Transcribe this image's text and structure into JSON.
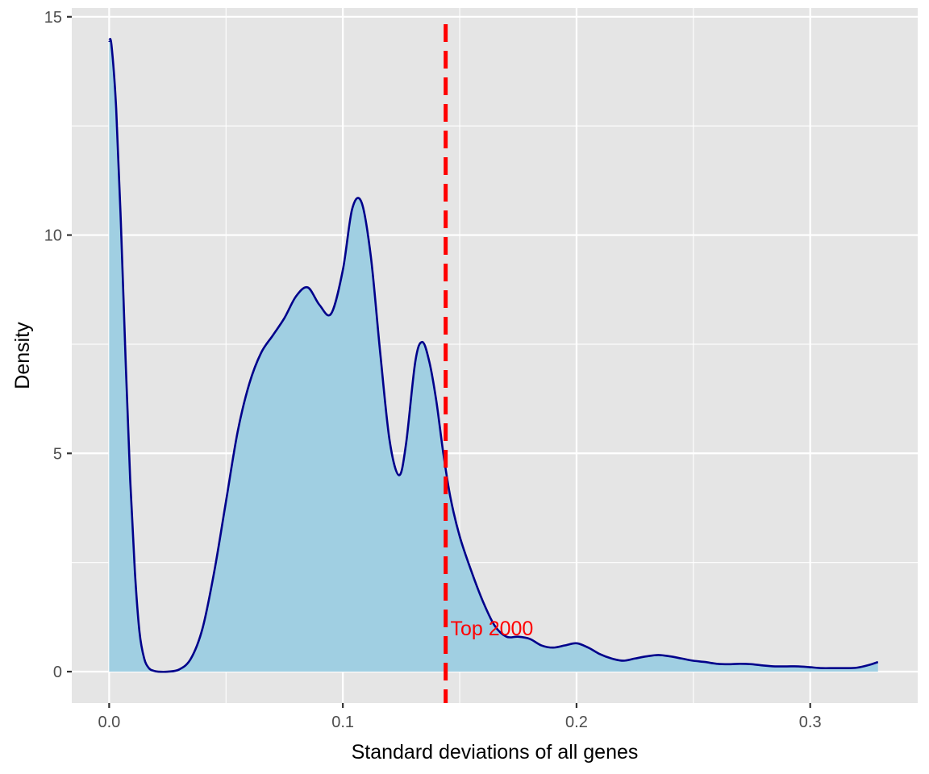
{
  "chart_data": {
    "type": "area",
    "title": "",
    "xlabel": "Standard deviations of all genes",
    "ylabel": "Density",
    "xlim": [
      -0.016,
      0.346
    ],
    "ylim": [
      -0.72,
      15.2
    ],
    "x_ticks": [
      0.0,
      0.1,
      0.2,
      0.3
    ],
    "x_tick_labels": [
      "0.0",
      "0.1",
      "0.2",
      "0.3"
    ],
    "y_ticks": [
      0,
      5,
      10,
      15
    ],
    "y_tick_labels": [
      "0",
      "5",
      "10",
      "15"
    ],
    "grid": true,
    "legend": "none",
    "fill_color": "#a0cfe2",
    "line_color": "#00008b",
    "panel_color": "#e5e5e5",
    "series": [
      {
        "x": [
          0.0,
          0.001,
          0.003,
          0.005,
          0.007,
          0.009,
          0.011,
          0.013,
          0.015,
          0.017,
          0.019,
          0.021,
          0.025,
          0.03,
          0.035,
          0.04,
          0.045,
          0.05,
          0.055,
          0.06,
          0.065,
          0.07,
          0.075,
          0.08,
          0.085,
          0.09,
          0.095,
          0.1,
          0.104,
          0.108,
          0.112,
          0.116,
          0.12,
          0.124,
          0.127,
          0.131,
          0.134,
          0.137,
          0.14,
          0.143,
          0.146,
          0.15,
          0.155,
          0.16,
          0.165,
          0.17,
          0.175,
          0.18,
          0.185,
          0.19,
          0.195,
          0.2,
          0.205,
          0.21,
          0.215,
          0.22,
          0.225,
          0.23,
          0.235,
          0.24,
          0.245,
          0.25,
          0.255,
          0.26,
          0.265,
          0.27,
          0.275,
          0.28,
          0.285,
          0.29,
          0.295,
          0.3,
          0.305,
          0.31,
          0.315,
          0.32,
          0.325,
          0.329
        ],
        "y": [
          14.45,
          14.35,
          12.9,
          10.3,
          7.2,
          4.4,
          2.3,
          0.9,
          0.3,
          0.08,
          0.02,
          0.0,
          0.0,
          0.05,
          0.3,
          1.0,
          2.3,
          3.9,
          5.5,
          6.6,
          7.3,
          7.7,
          8.1,
          8.6,
          8.8,
          8.4,
          8.2,
          9.2,
          10.6,
          10.75,
          9.5,
          7.3,
          5.3,
          4.5,
          5.2,
          7.1,
          7.55,
          7.1,
          6.2,
          5.0,
          4.0,
          3.1,
          2.3,
          1.6,
          1.05,
          0.8,
          0.8,
          0.75,
          0.6,
          0.55,
          0.6,
          0.65,
          0.55,
          0.4,
          0.3,
          0.25,
          0.3,
          0.35,
          0.38,
          0.35,
          0.3,
          0.25,
          0.22,
          0.18,
          0.17,
          0.18,
          0.17,
          0.14,
          0.12,
          0.12,
          0.12,
          0.1,
          0.08,
          0.08,
          0.08,
          0.09,
          0.15,
          0.22
        ]
      }
    ],
    "vline": {
      "x": 0.144,
      "color": "#ff0000",
      "style": "dashed"
    },
    "annotation": {
      "text": "Top 2000",
      "x": 0.146,
      "y": 0.95,
      "color": "#ff0000"
    }
  }
}
